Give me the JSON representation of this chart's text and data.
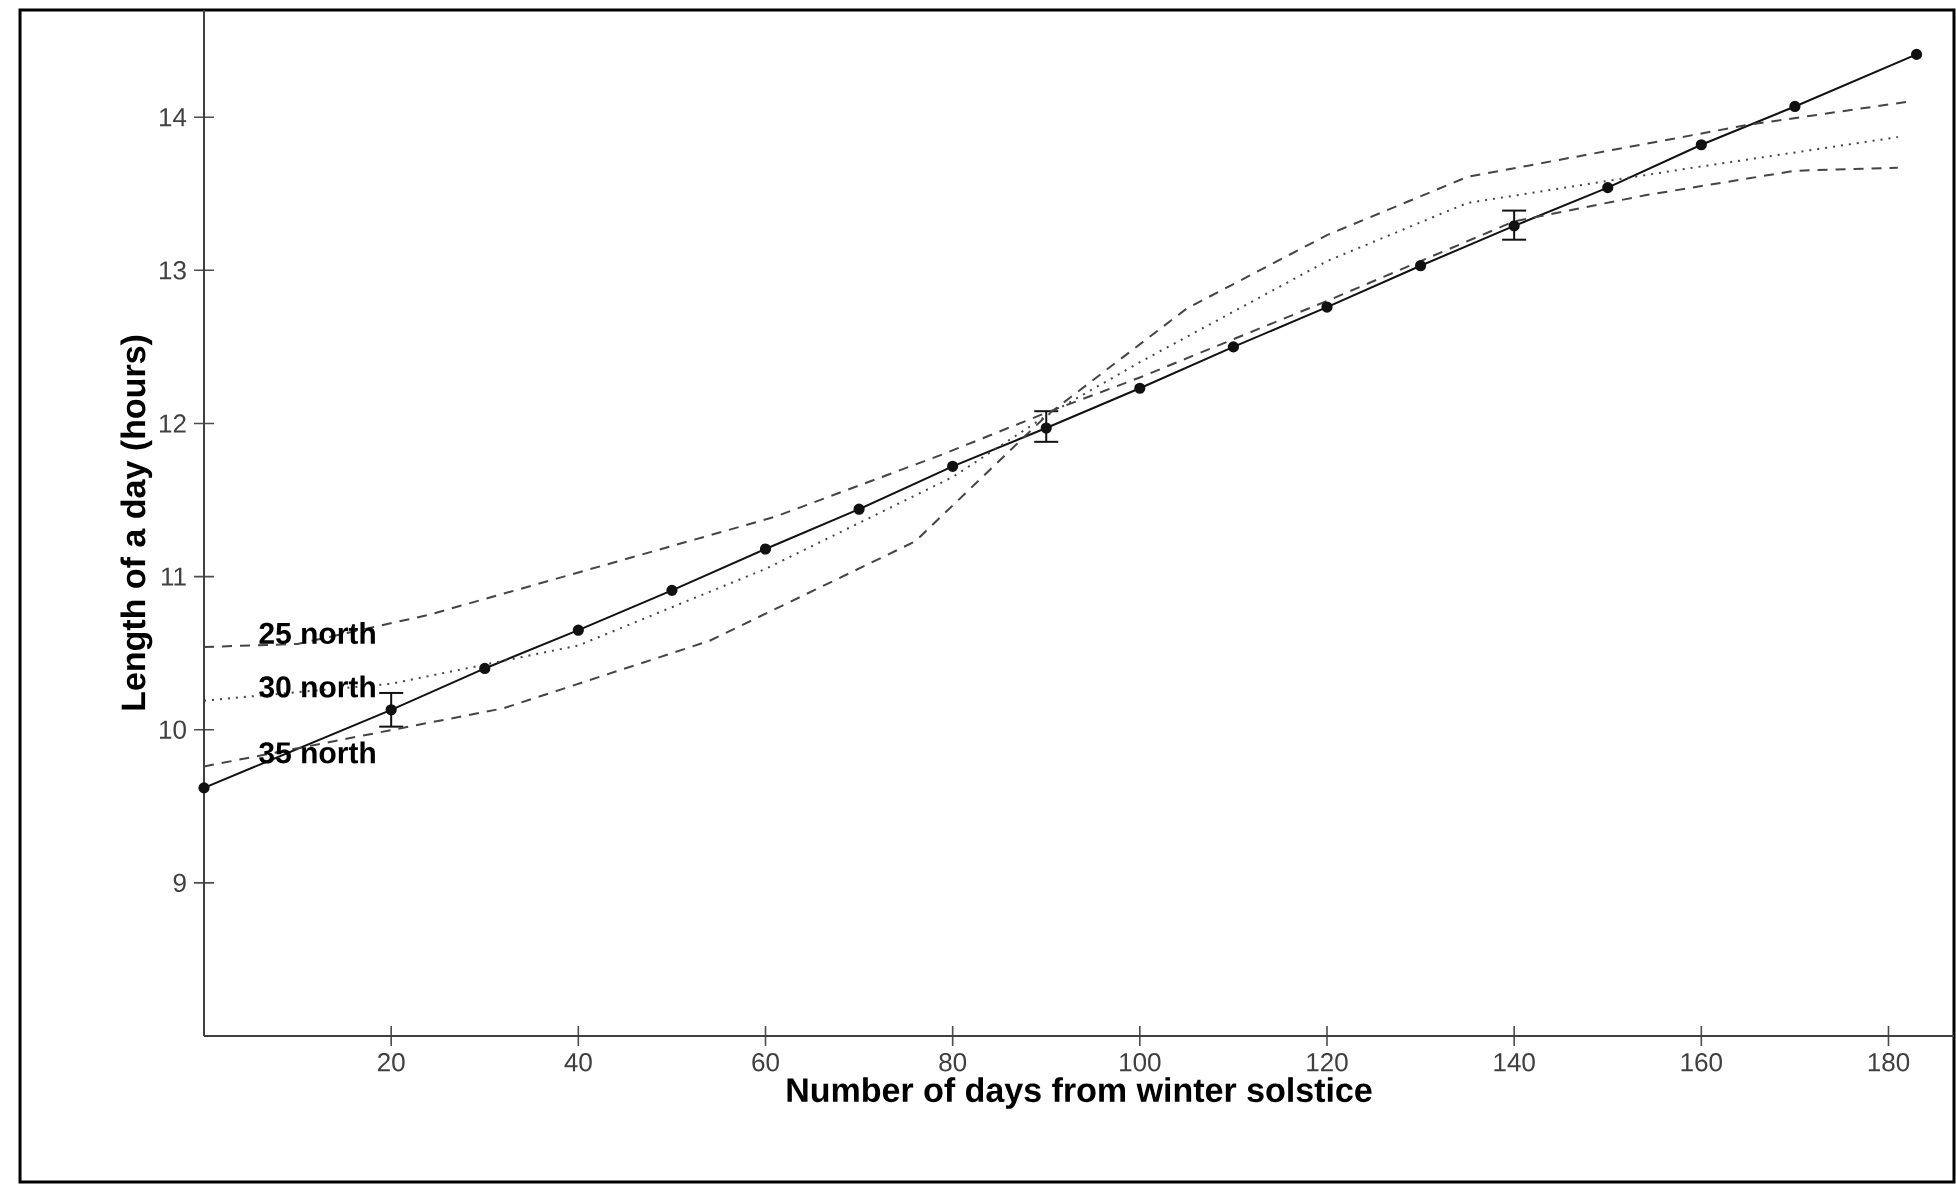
{
  "chart_data": {
    "type": "line",
    "xlabel": "Number of days from winter solstice",
    "ylabel": "Length of a day  (hours)",
    "xlim": [
      0,
      187
    ],
    "ylim": [
      8,
      14.7
    ],
    "xticks": [
      20,
      40,
      60,
      80,
      100,
      120,
      140,
      160,
      180
    ],
    "yticks": [
      9,
      10,
      11,
      12,
      13,
      14
    ],
    "grid": false,
    "series": [
      {
        "color": "#111111",
        "marker": "circle",
        "line_style": "solid",
        "x": [
          0,
          20,
          30,
          40,
          50,
          60,
          70,
          80,
          90,
          100,
          110,
          120,
          130,
          140,
          150,
          160,
          170,
          183
        ],
        "values": [
          9.62,
          10.13,
          10.4,
          10.65,
          10.91,
          11.18,
          11.44,
          11.72,
          11.97,
          12.23,
          12.5,
          12.76,
          13.03,
          13.29,
          13.54,
          13.82,
          14.07,
          14.41
        ],
        "errors": [
          null,
          [
            10.02,
            10.24
          ],
          null,
          null,
          null,
          null,
          null,
          null,
          [
            11.88,
            12.08
          ],
          null,
          null,
          null,
          null,
          [
            13.2,
            13.39
          ],
          null,
          null,
          null,
          null
        ]
      },
      {
        "name": "25 north",
        "color": "#444444",
        "marker": "none",
        "line_style": "dashed",
        "x": [
          0,
          10,
          24,
          61,
          79,
          90,
          100,
          120,
          140,
          154,
          170,
          181
        ],
        "values": [
          10.54,
          10.56,
          10.75,
          11.39,
          11.8,
          12.07,
          12.3,
          12.8,
          13.32,
          13.49,
          13.65,
          13.67
        ]
      },
      {
        "name": "30 north",
        "color": "#444444",
        "marker": "none",
        "line_style": "dotted",
        "x": [
          0,
          20,
          40,
          60,
          80,
          90,
          100,
          120,
          135,
          158,
          181
        ],
        "values": [
          10.19,
          10.3,
          10.55,
          11.05,
          11.65,
          12.05,
          12.4,
          13.06,
          13.44,
          13.66,
          13.87
        ]
      },
      {
        "name": "35 north",
        "color": "#444444",
        "marker": "none",
        "line_style": "dashed",
        "x": [
          0,
          32,
          54,
          76,
          90,
          105,
          120,
          135,
          150,
          165,
          182
        ],
        "values": [
          9.76,
          10.14,
          10.58,
          11.23,
          12.05,
          12.75,
          13.23,
          13.61,
          13.78,
          13.95,
          14.1
        ]
      }
    ]
  }
}
